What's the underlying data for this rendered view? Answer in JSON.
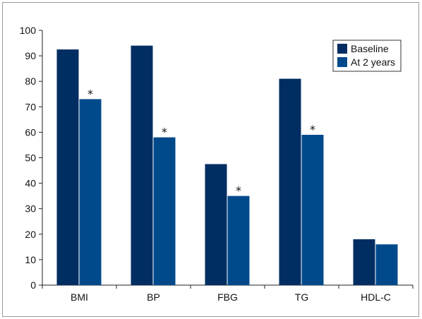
{
  "chart_data": {
    "type": "bar",
    "categories": [
      "BMI",
      "BP",
      "FBG",
      "TG",
      "HDL-C"
    ],
    "series": [
      {
        "name": "Baseline",
        "values": [
          92.5,
          94,
          47.5,
          81,
          18
        ],
        "color": "#002D62"
      },
      {
        "name": "At 2 years",
        "values": [
          73,
          58,
          35,
          59,
          16
        ],
        "color": "#004A8C"
      }
    ],
    "annotations": [
      {
        "category": "BMI",
        "series": "At 2 years",
        "text": "*"
      },
      {
        "category": "BP",
        "series": "At 2 years",
        "text": "*"
      },
      {
        "category": "FBG",
        "series": "At 2 years",
        "text": "*"
      },
      {
        "category": "TG",
        "series": "At 2 years",
        "text": "*"
      }
    ],
    "ylim": [
      0,
      100
    ],
    "yticks": [
      0,
      10,
      20,
      30,
      40,
      50,
      60,
      70,
      80,
      90,
      100
    ],
    "legend_position": "top-right",
    "grid": false
  }
}
